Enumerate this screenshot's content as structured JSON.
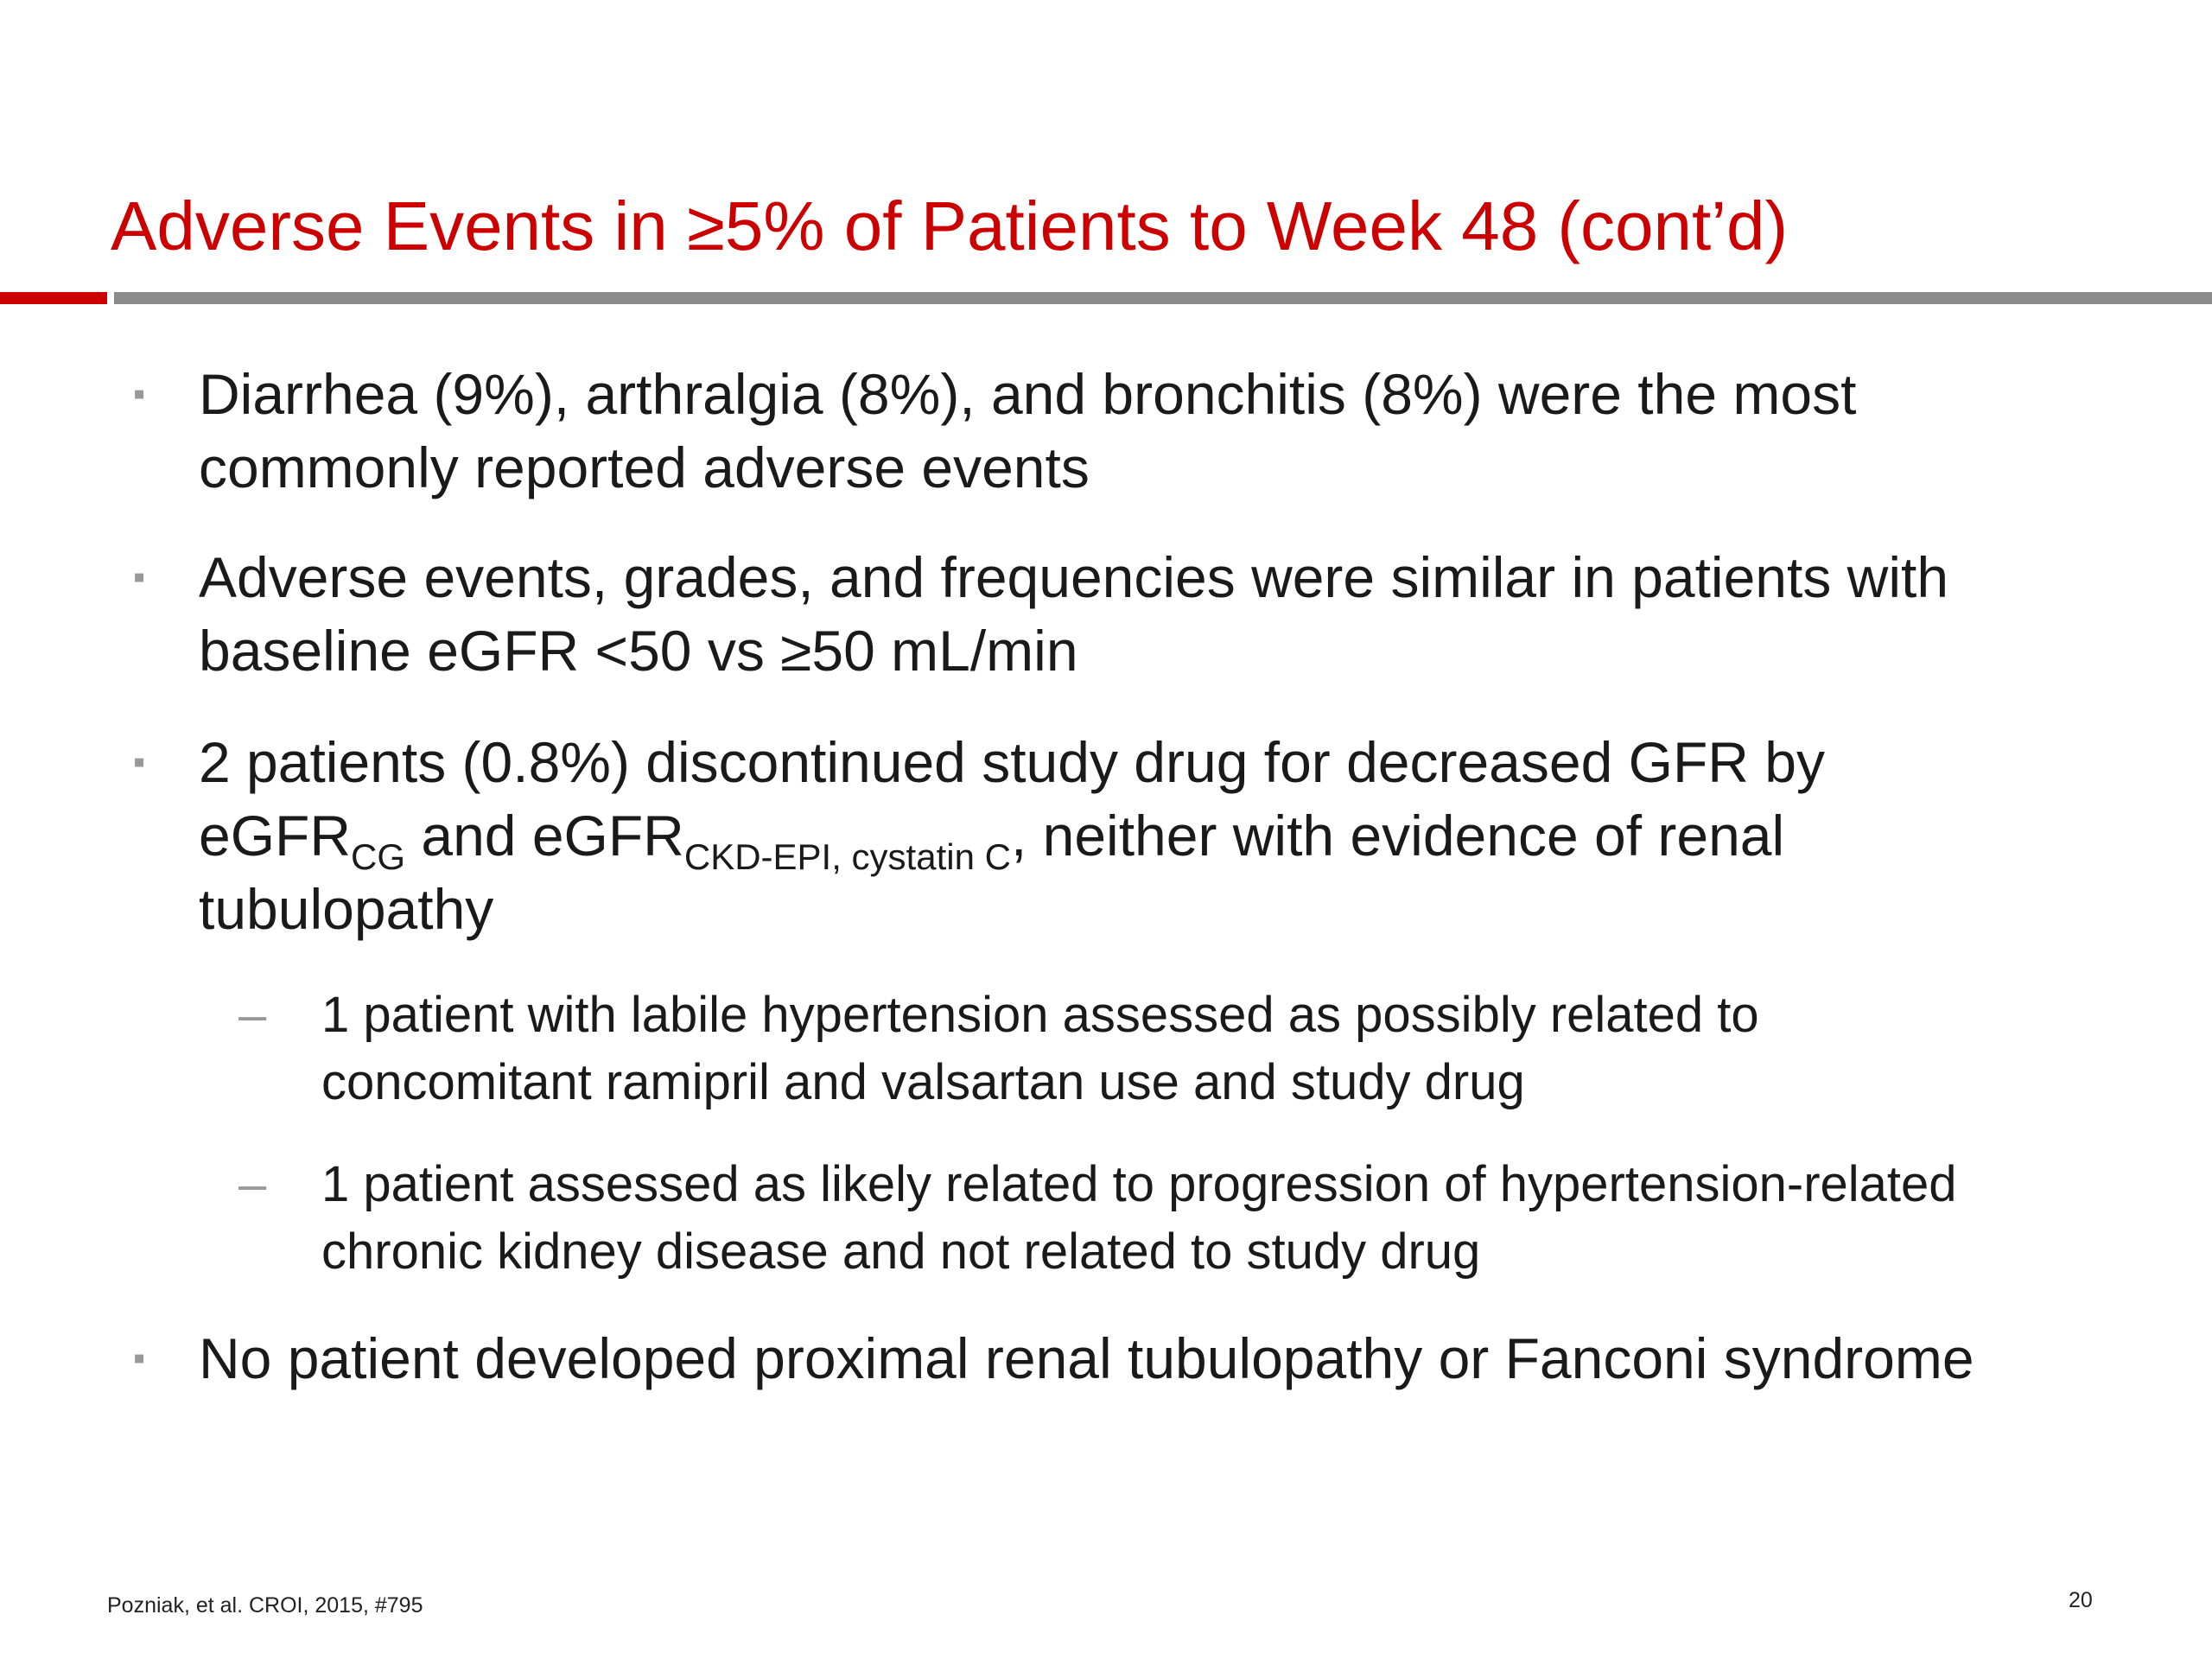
{
  "slide": {
    "title": "Adverse Events in ≥5% of Patients to Week 48 (cont’d)",
    "bullets": [
      {
        "marker": "▪",
        "text": "Diarrhea (9%), arthralgia (8%), and bronchitis (8%) were the most commonly reported adverse events"
      },
      {
        "marker": "▪",
        "text": "Adverse events, grades, and frequencies were similar in patients with baseline eGFR <50 vs ≥50 mL/min"
      },
      {
        "marker": "▪",
        "text_part1": "2 patients (0.8%) discontinued study drug for decreased GFR by eGFR",
        "sub1": "CG",
        "text_part2": " and eGFR",
        "sub2": "CKD-EPI, cystatin C",
        "text_part3": ", neither with evidence of renal tubulopathy",
        "sub_bullets": [
          {
            "marker": "–",
            "text": "1 patient with labile hypertension assessed as possibly related to concomitant ramipril and valsartan use and study drug"
          },
          {
            "marker": "–",
            "text": "1 patient assessed as likely related to progression of hypertension-related chronic kidney disease and not related to study drug"
          }
        ]
      },
      {
        "marker": "▪",
        "text": "No patient developed proximal renal tubulopathy or Fanconi syndrome"
      }
    ],
    "footer": {
      "citation": "Pozniak, et al. CROI, 2015, #795",
      "page_number": "20"
    },
    "colors": {
      "title": "#cc0000",
      "accent_rule": "#cc0000",
      "rule": "#8a8a8a",
      "marker": "#999999"
    }
  }
}
